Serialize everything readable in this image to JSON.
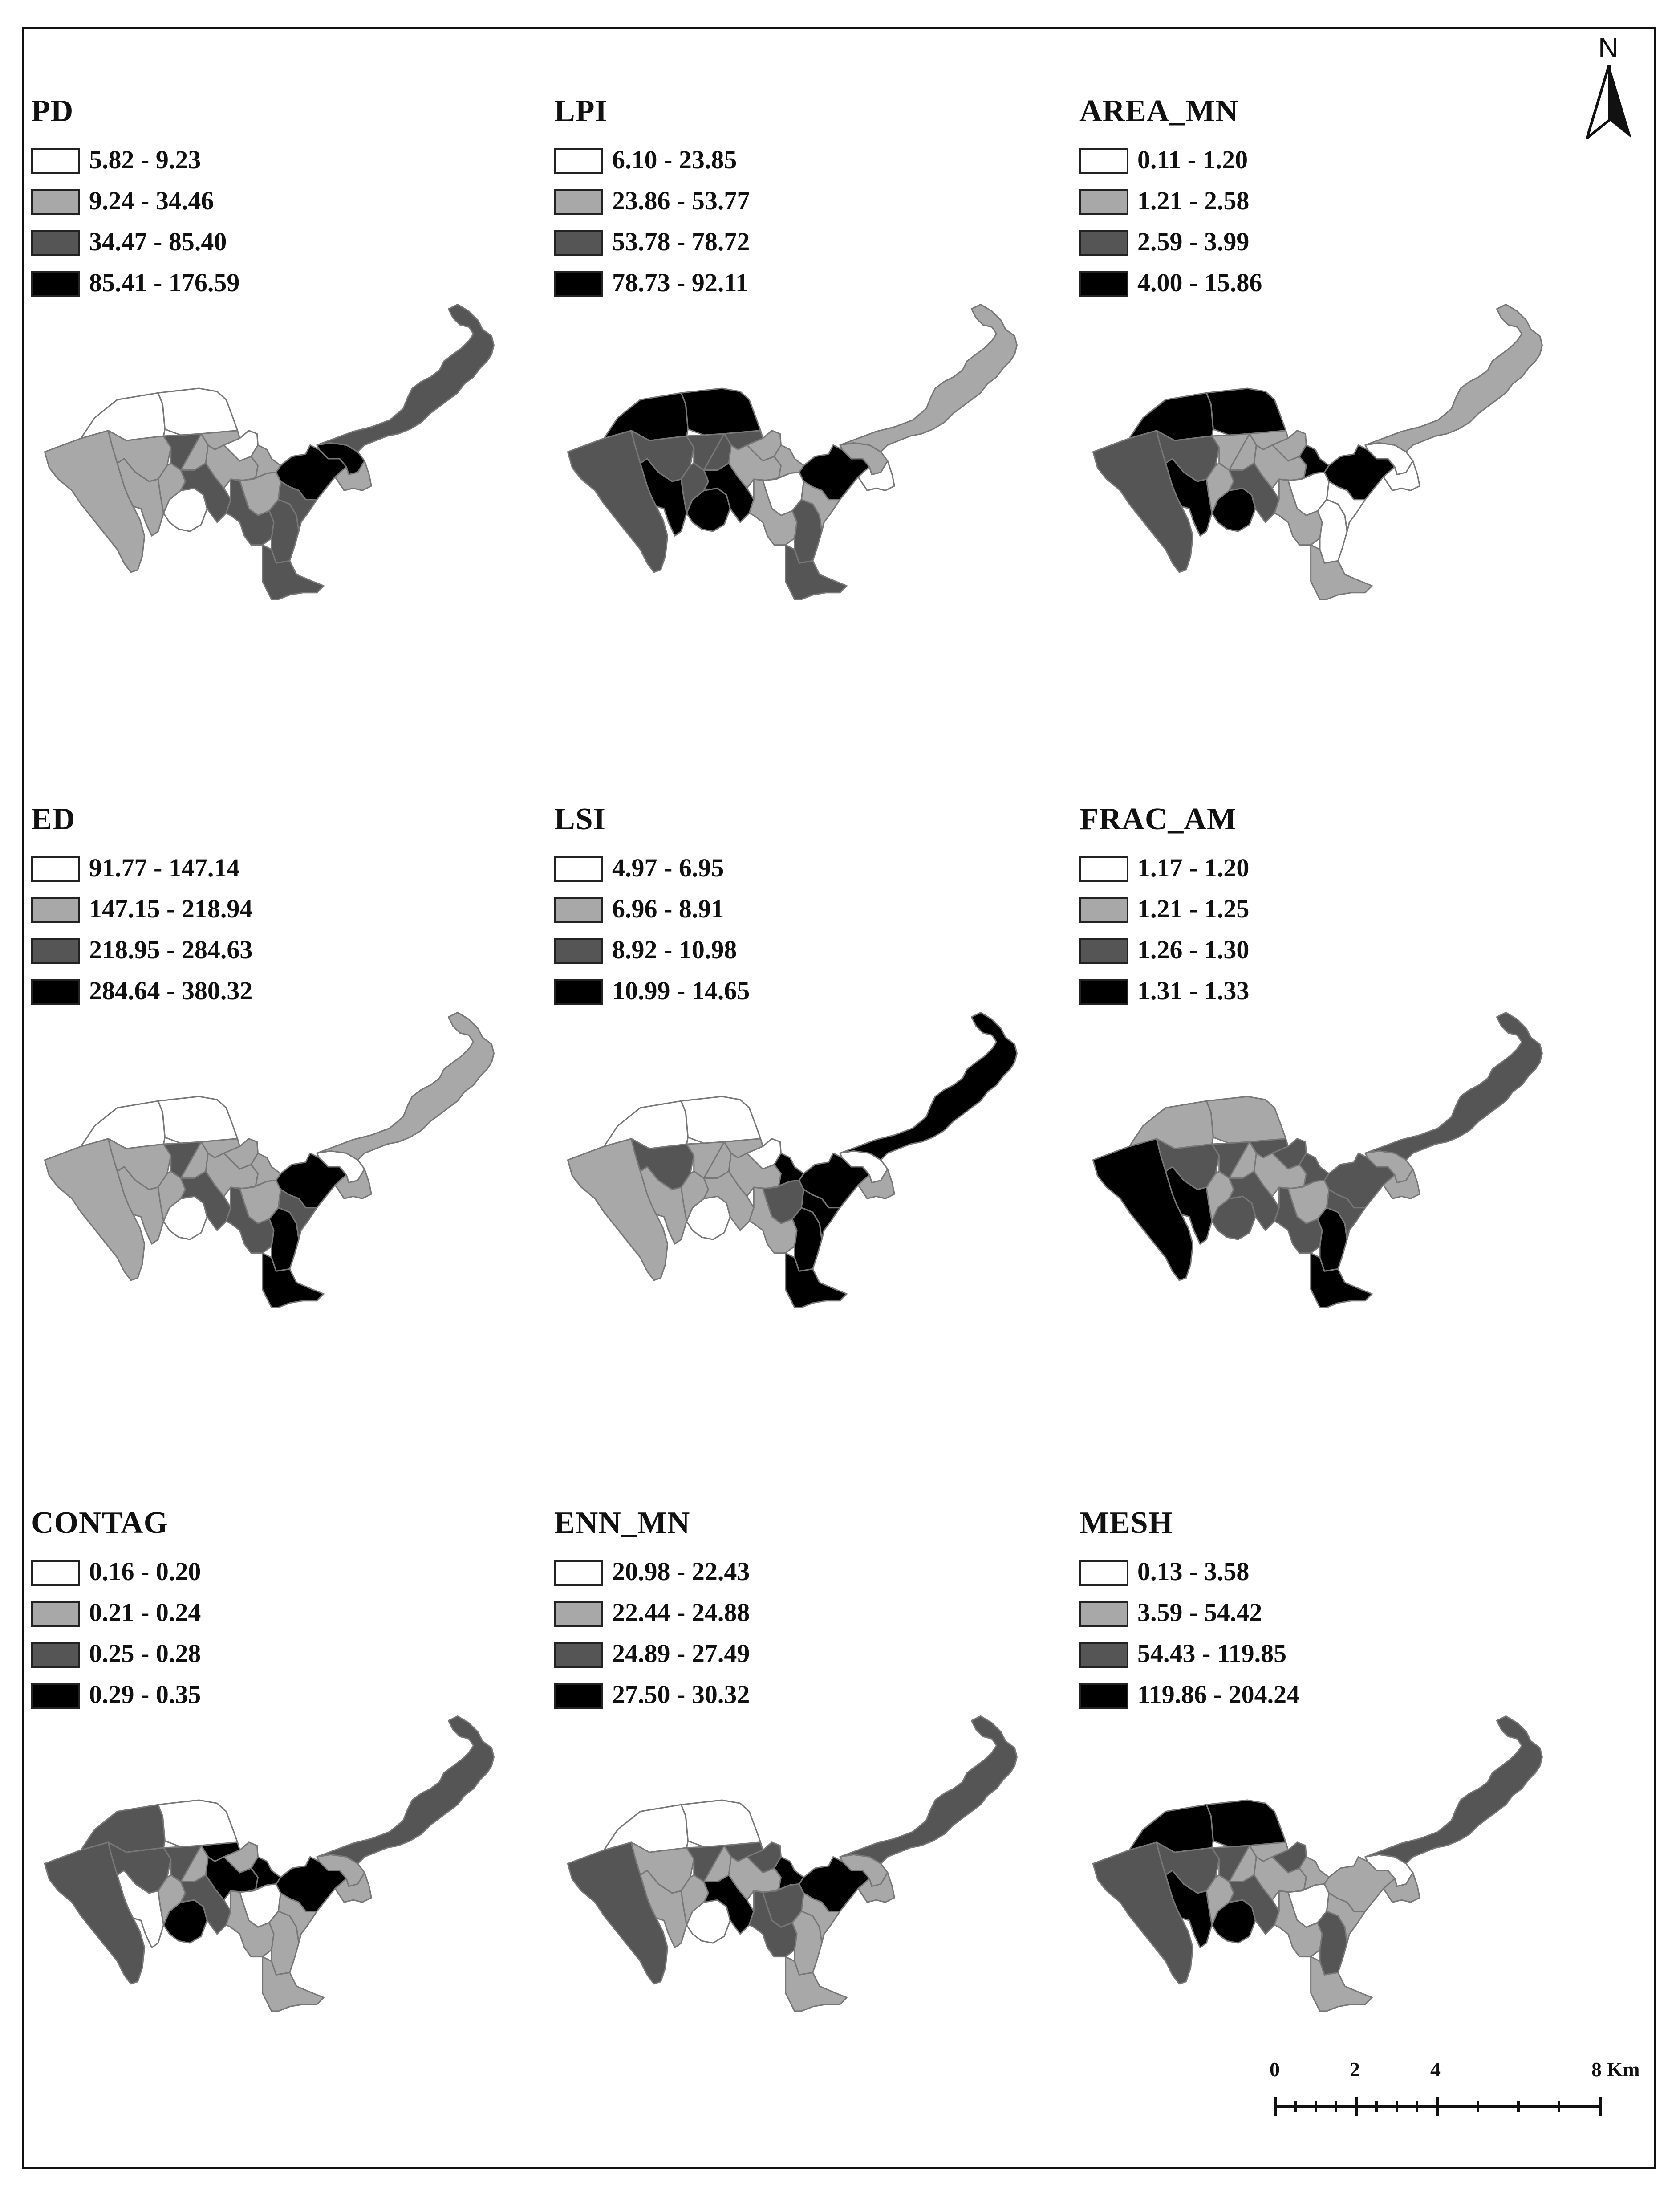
{
  "north_arrow": {
    "label": "N",
    "icon": "north-arrow-icon"
  },
  "scale_bar": {
    "ticks": [
      "0",
      "2",
      "4",
      "8 Km"
    ]
  },
  "class_colors": [
    "#ffffff",
    "#a8a8a8",
    "#555555",
    "#000000"
  ],
  "panels": [
    {
      "title": "PD",
      "legend": [
        "5.82 - 9.23",
        "9.24 - 34.46",
        "34.47 - 85.40",
        "85.41 - 176.59"
      ],
      "classes": [
        1,
        0,
        0,
        1,
        1,
        0,
        2,
        1,
        1,
        2,
        0,
        1,
        1,
        3,
        3,
        1,
        2,
        2,
        2,
        2,
        1,
        2
      ]
    },
    {
      "title": "LPI",
      "legend": [
        "6.10 - 23.85",
        "23.86 - 53.77",
        "53.78 - 78.72",
        "78.73 - 92.11"
      ],
      "classes": [
        2,
        3,
        3,
        2,
        3,
        3,
        2,
        2,
        2,
        3,
        1,
        1,
        1,
        3,
        1,
        0,
        1,
        2,
        2,
        1,
        0,
        1
      ]
    },
    {
      "title": "AREA_MN",
      "legend": [
        "0.11 - 1.20",
        "1.21 - 2.58",
        "2.59 - 3.99",
        "4.00 - 15.86"
      ],
      "classes": [
        2,
        3,
        3,
        2,
        3,
        3,
        1,
        1,
        1,
        2,
        1,
        1,
        3,
        3,
        0,
        0,
        1,
        0,
        1,
        0,
        0,
        1
      ]
    },
    {
      "title": "ED",
      "legend": [
        "91.77 - 147.14",
        "147.15 - 218.94",
        "218.95 - 284.63",
        "284.64 - 380.32"
      ],
      "classes": [
        1,
        0,
        0,
        1,
        1,
        0,
        2,
        1,
        1,
        2,
        1,
        1,
        1,
        3,
        0,
        1,
        2,
        3,
        3,
        2,
        1,
        1
      ]
    },
    {
      "title": "LSI",
      "legend": [
        "4.97 - 6.95",
        "6.96 - 8.91",
        "8.92 - 10.98",
        "10.99 - 14.65"
      ],
      "classes": [
        1,
        0,
        0,
        2,
        1,
        0,
        1,
        1,
        1,
        1,
        0,
        1,
        3,
        3,
        0,
        2,
        1,
        3,
        3,
        3,
        1,
        3
      ]
    },
    {
      "title": "FRAC_AM",
      "legend": [
        "1.17 - 1.20",
        "1.21 - 1.25",
        "1.26 - 1.30",
        "1.31 - 1.33"
      ],
      "classes": [
        3,
        1,
        1,
        2,
        3,
        2,
        2,
        2,
        1,
        2,
        2,
        1,
        2,
        2,
        1,
        1,
        2,
        3,
        3,
        2,
        1,
        2
      ]
    },
    {
      "title": "CONTAG",
      "legend": [
        "0.16 - 0.20",
        "0.21 - 0.24",
        "0.25 - 0.28",
        "0.29 - 0.35"
      ],
      "classes": [
        2,
        2,
        0,
        2,
        0,
        3,
        2,
        3,
        1,
        2,
        1,
        3,
        3,
        3,
        1,
        0,
        1,
        1,
        1,
        1,
        1,
        2
      ]
    },
    {
      "title": "ENN_MN",
      "legend": [
        "20.98 - 22.43",
        "22.44 - 24.88",
        "24.89 - 27.49",
        "27.50 - 30.32"
      ],
      "classes": [
        2,
        0,
        0,
        1,
        1,
        0,
        2,
        2,
        1,
        3,
        2,
        1,
        3,
        3,
        1,
        2,
        2,
        1,
        1,
        1,
        1,
        2
      ]
    },
    {
      "title": "MESH",
      "legend": [
        "0.13 - 3.58",
        "3.59 - 54.42",
        "54.43 - 119.85",
        "119.86 - 204.24"
      ],
      "classes": [
        2,
        3,
        3,
        2,
        3,
        3,
        2,
        1,
        1,
        2,
        2,
        1,
        1,
        1,
        0,
        0,
        1,
        2,
        1,
        1,
        1,
        2
      ]
    }
  ]
}
